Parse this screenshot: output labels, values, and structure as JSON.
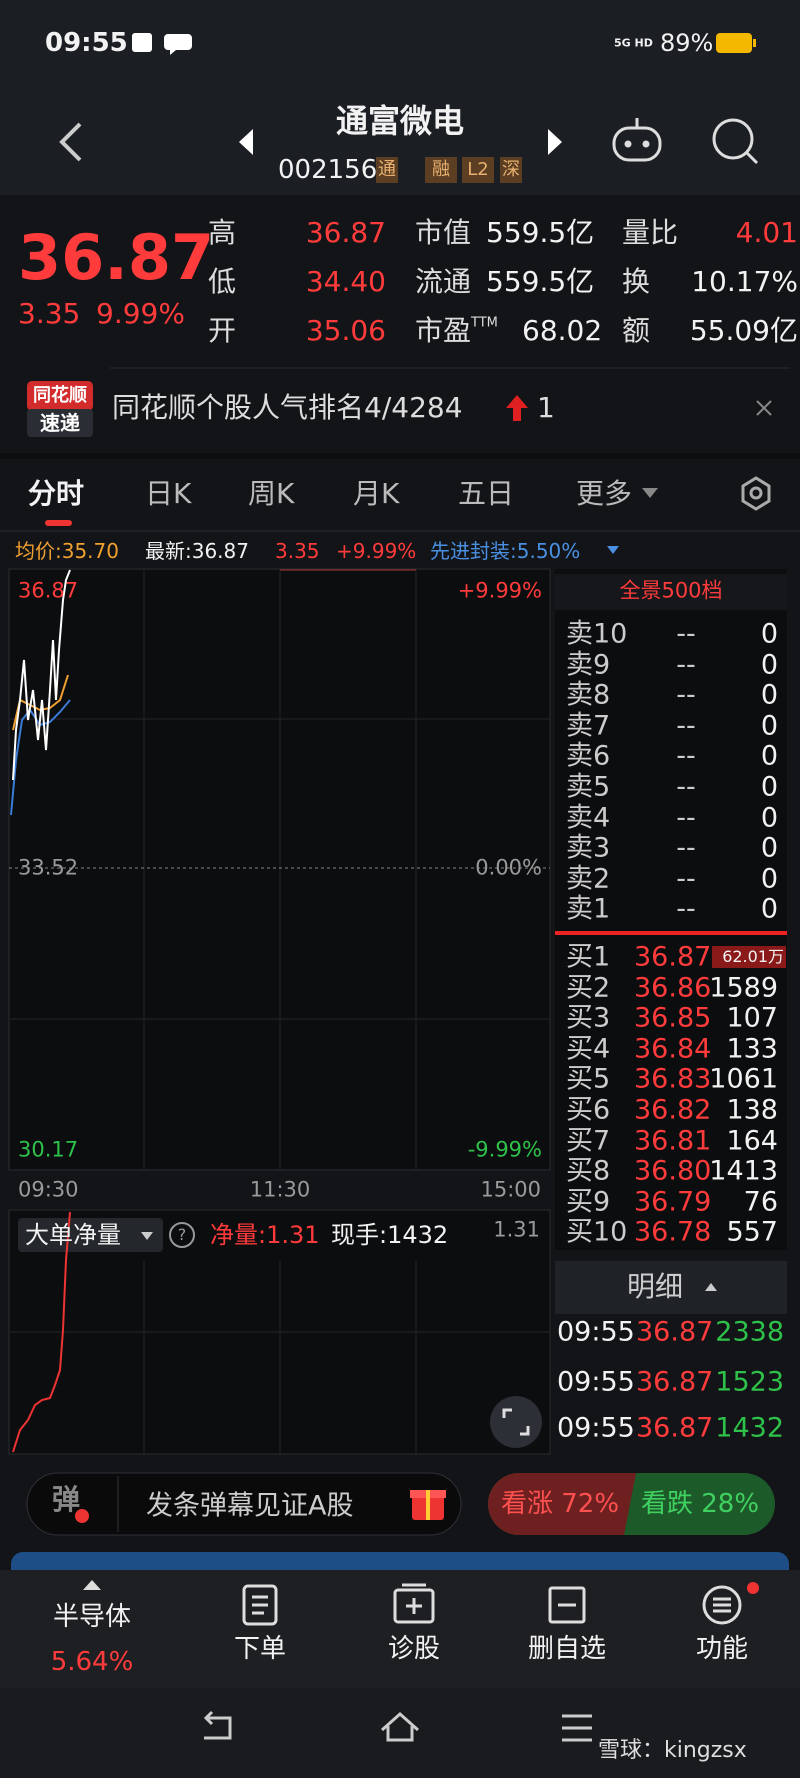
{
  "status_bar": {
    "time": "09:55",
    "network": "5G HD",
    "battery": "89%"
  },
  "header": {
    "name": "通富微电",
    "code": "002156",
    "tags": [
      "通",
      "融",
      "L2",
      "深"
    ]
  },
  "quote": {
    "price": "36.87",
    "change": "3.35",
    "change_pct": "9.99%",
    "stats": [
      [
        {
          "label": "高",
          "value": "36.87"
        },
        {
          "label": "市值",
          "value": "559.5亿"
        },
        {
          "label": "量比",
          "value": "4.01"
        }
      ],
      [
        {
          "label": "低",
          "value": "34.40"
        },
        {
          "label": "流通",
          "value": "559.5亿"
        },
        {
          "label": "换",
          "value": "10.17%"
        }
      ],
      [
        {
          "label": "开",
          "value": "35.06"
        },
        {
          "label": "市盈",
          "label_sup": "TTM",
          "value": "68.02"
        },
        {
          "label": "额",
          "value": "55.09亿"
        }
      ]
    ]
  },
  "banner": {
    "logo": [
      "同花顺",
      "速递"
    ],
    "text": "同花顺个股人气排名4/4284",
    "rank_change": "1"
  },
  "tabs": [
    "分时",
    "日K",
    "周K",
    "月K",
    "五日",
    "更多"
  ],
  "info": {
    "avg": "均价:35.70",
    "latest": "最新:36.87",
    "change": "3.35",
    "change_pct": "+9.99%",
    "sector": "先进封装:5.50%"
  },
  "chart": {
    "price_high": "36.87",
    "pct_high": "+9.99%",
    "price_mid": "33.52",
    "pct_mid": "0.00%",
    "price_low": "30.17",
    "pct_low": "-9.99%",
    "times": [
      "09:30",
      "11:30",
      "15:00"
    ]
  },
  "indicator": {
    "name": "大单净量",
    "help": "?",
    "net": "净量:1.31",
    "current": "现手:1432",
    "scale": "1.31"
  },
  "order_book": {
    "title": "全景500档",
    "sell": [
      {
        "label": "卖10",
        "price": "--",
        "volume": "0"
      },
      {
        "label": "卖9",
        "price": "--",
        "volume": "0"
      },
      {
        "label": "卖8",
        "price": "--",
        "volume": "0"
      },
      {
        "label": "卖7",
        "price": "--",
        "volume": "0"
      },
      {
        "label": "卖6",
        "price": "--",
        "volume": "0"
      },
      {
        "label": "卖5",
        "price": "--",
        "volume": "0"
      },
      {
        "label": "卖4",
        "price": "--",
        "volume": "0"
      },
      {
        "label": "卖3",
        "price": "--",
        "volume": "0"
      },
      {
        "label": "卖2",
        "price": "--",
        "volume": "0"
      },
      {
        "label": "卖1",
        "price": "--",
        "volume": "0"
      }
    ],
    "buy": [
      {
        "label": "买1",
        "price": "36.87",
        "volume": "62.01万"
      },
      {
        "label": "买2",
        "price": "36.86",
        "volume": "1589"
      },
      {
        "label": "买3",
        "price": "36.85",
        "volume": "107"
      },
      {
        "label": "买4",
        "price": "36.84",
        "volume": "133"
      },
      {
        "label": "买5",
        "price": "36.83",
        "volume": "1061"
      },
      {
        "label": "买6",
        "price": "36.82",
        "volume": "138"
      },
      {
        "label": "买7",
        "price": "36.81",
        "volume": "164"
      },
      {
        "label": "买8",
        "price": "36.80",
        "volume": "1413"
      },
      {
        "label": "买9",
        "price": "36.79",
        "volume": "76"
      },
      {
        "label": "买10",
        "price": "36.78",
        "volume": "557"
      }
    ]
  },
  "trades": {
    "title": "明细",
    "rows": [
      [
        "09:55",
        "36.87",
        "2338"
      ],
      [
        "09:55",
        "36.87",
        "1523"
      ],
      [
        "09:55",
        "36.87",
        "1432"
      ]
    ]
  },
  "danmaku": {
    "badge": "弹",
    "placeholder": "发条弹幕见证A股"
  },
  "sentiment": {
    "up": "看涨 72%",
    "down": "看跌 28%"
  },
  "nav": {
    "sector": {
      "name": "半导体",
      "change": "5.64%"
    },
    "items": [
      "下单",
      "诊股",
      "删自选",
      "功能"
    ]
  },
  "watermark": "雪球：kingzsx"
}
